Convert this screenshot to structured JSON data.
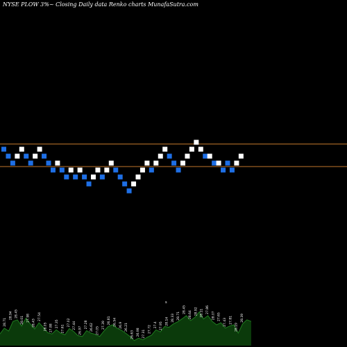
{
  "chart_data": {
    "type": "renko",
    "title": "NYSE PLOW 3%~  Closing Daily data  Renko  charts MunafaSutra.com",
    "colors": {
      "background": "#000000",
      "up_brick": "#ffffff",
      "down_brick": "#1e6fe6",
      "reference_line": "#c0762c",
      "volume_fill": "#0b3a0b",
      "volume_line": "#1f7a1f",
      "label_text": "#ffffff"
    },
    "reference_lines": [
      28.9,
      27.6
    ],
    "bricks": [
      {
        "dir": "down",
        "y": 28.6
      },
      {
        "dir": "down",
        "y": 28.2
      },
      {
        "dir": "down",
        "y": 27.8
      },
      {
        "dir": "up",
        "y": 28.2
      },
      {
        "dir": "up",
        "y": 28.6
      },
      {
        "dir": "down",
        "y": 28.2
      },
      {
        "dir": "down",
        "y": 27.8
      },
      {
        "dir": "up",
        "y": 28.2
      },
      {
        "dir": "up",
        "y": 28.6
      },
      {
        "dir": "down",
        "y": 28.2
      },
      {
        "dir": "down",
        "y": 27.8
      },
      {
        "dir": "down",
        "y": 27.4
      },
      {
        "dir": "up",
        "y": 27.8
      },
      {
        "dir": "down",
        "y": 27.4
      },
      {
        "dir": "down",
        "y": 27.0
      },
      {
        "dir": "up",
        "y": 27.4
      },
      {
        "dir": "down",
        "y": 27.0
      },
      {
        "dir": "up",
        "y": 27.4
      },
      {
        "dir": "down",
        "y": 27.0
      },
      {
        "dir": "down",
        "y": 26.6
      },
      {
        "dir": "up",
        "y": 27.0
      },
      {
        "dir": "up",
        "y": 27.4
      },
      {
        "dir": "down",
        "y": 27.0
      },
      {
        "dir": "up",
        "y": 27.4
      },
      {
        "dir": "up",
        "y": 27.8
      },
      {
        "dir": "down",
        "y": 27.4
      },
      {
        "dir": "down",
        "y": 27.0
      },
      {
        "dir": "down",
        "y": 26.6
      },
      {
        "dir": "down",
        "y": 26.2
      },
      {
        "dir": "up",
        "y": 26.6
      },
      {
        "dir": "up",
        "y": 27.0
      },
      {
        "dir": "up",
        "y": 27.4
      },
      {
        "dir": "up",
        "y": 27.8
      },
      {
        "dir": "down",
        "y": 27.4
      },
      {
        "dir": "up",
        "y": 27.8
      },
      {
        "dir": "up",
        "y": 28.2
      },
      {
        "dir": "up",
        "y": 28.6
      },
      {
        "dir": "down",
        "y": 28.2
      },
      {
        "dir": "down",
        "y": 27.8
      },
      {
        "dir": "down",
        "y": 27.4
      },
      {
        "dir": "up",
        "y": 27.8
      },
      {
        "dir": "up",
        "y": 28.2
      },
      {
        "dir": "up",
        "y": 28.6
      },
      {
        "dir": "up",
        "y": 29.0
      },
      {
        "dir": "up",
        "y": 28.6
      },
      {
        "dir": "down",
        "y": 28.2
      },
      {
        "dir": "up",
        "y": 28.2
      },
      {
        "dir": "down",
        "y": 27.8
      },
      {
        "dir": "up",
        "y": 27.8
      },
      {
        "dir": "down",
        "y": 27.4
      },
      {
        "dir": "down",
        "y": 27.8
      },
      {
        "dir": "down",
        "y": 27.4
      },
      {
        "dir": "up",
        "y": 27.8
      },
      {
        "dir": "up",
        "y": 28.2
      }
    ],
    "volume": [
      0.28,
      0.42,
      0.35,
      0.58,
      0.62,
      0.47,
      0.66,
      0.52,
      0.4,
      0.55,
      0.44,
      0.31,
      0.28,
      0.38,
      0.3,
      0.26,
      0.41,
      0.34,
      0.24,
      0.22,
      0.36,
      0.3,
      0.27,
      0.22,
      0.35,
      0.46,
      0.5,
      0.42,
      0.37,
      0.3,
      0.22,
      0.12,
      0.18,
      0.14,
      0.2,
      0.25,
      0.38,
      0.33,
      0.46,
      0.44,
      0.52,
      0.57,
      0.64,
      0.72,
      0.6,
      0.68,
      0.81,
      0.64,
      0.72,
      0.58,
      0.5,
      0.55,
      0.42,
      0.47,
      0.5,
      0.3,
      0.52,
      0.62,
      0.58
    ],
    "volume_labels": [
      "28.71",
      "28.94",
      "28.45",
      "28.01",
      "27.98",
      "28.43",
      "27.54",
      "28.05",
      "27.88",
      "27.35",
      "27.61",
      "27.02",
      "27.44",
      "26.97",
      "27.28",
      "26.62",
      "27.05",
      "27.39",
      "26.81",
      "26.54",
      "26.9",
      "26.21",
      "26.63",
      "26.98",
      "27.31",
      "27.72",
      "27.4",
      "27.95",
      "28.14",
      "28.33",
      "28.71",
      "28.45",
      "28.64",
      "28.92",
      "28.11",
      "27.86",
      "28.07",
      "27.65",
      "27.43",
      "27.81",
      "28.19",
      "28.39"
    ],
    "volume_marker": "s"
  }
}
